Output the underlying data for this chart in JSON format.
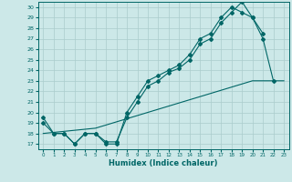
{
  "title": "",
  "xlabel": "Humidex (Indice chaleur)",
  "bg_color": "#cce8e8",
  "grid_color": "#aacccc",
  "line_color": "#006666",
  "xlim": [
    -0.5,
    23.5
  ],
  "ylim": [
    16.5,
    30.5
  ],
  "xticks": [
    0,
    1,
    2,
    3,
    4,
    5,
    6,
    7,
    8,
    9,
    10,
    11,
    12,
    13,
    14,
    15,
    16,
    17,
    18,
    19,
    20,
    21,
    22,
    23
  ],
  "yticks": [
    17,
    18,
    19,
    20,
    21,
    22,
    23,
    24,
    25,
    26,
    27,
    28,
    29,
    30
  ],
  "line1_x": [
    0,
    1,
    2,
    3,
    4,
    5,
    6,
    7,
    8,
    9,
    10,
    11,
    12,
    13,
    14,
    15,
    16,
    17,
    18,
    19,
    20,
    21
  ],
  "line1_y": [
    19.5,
    18.0,
    18.0,
    17.0,
    18.0,
    18.0,
    17.0,
    17.0,
    20.0,
    21.5,
    23.0,
    23.5,
    24.0,
    24.5,
    25.5,
    27.0,
    27.5,
    29.0,
    30.0,
    29.5,
    29.0,
    27.5
  ],
  "line2_x": [
    0,
    1,
    2,
    3,
    4,
    5,
    6,
    7,
    8,
    9,
    10,
    11,
    12,
    13,
    14,
    15,
    16,
    17,
    18,
    19,
    20,
    21,
    22
  ],
  "line2_y": [
    19.0,
    18.0,
    18.0,
    17.0,
    18.0,
    18.0,
    17.2,
    17.2,
    19.5,
    21.0,
    22.5,
    23.0,
    23.8,
    24.2,
    25.0,
    26.5,
    27.0,
    28.5,
    29.5,
    30.5,
    29.0,
    27.0,
    23.0
  ],
  "line3_x": [
    0,
    5,
    10,
    15,
    20,
    23
  ],
  "line3_y": [
    18.0,
    18.5,
    20.0,
    21.5,
    23.0,
    23.0
  ]
}
